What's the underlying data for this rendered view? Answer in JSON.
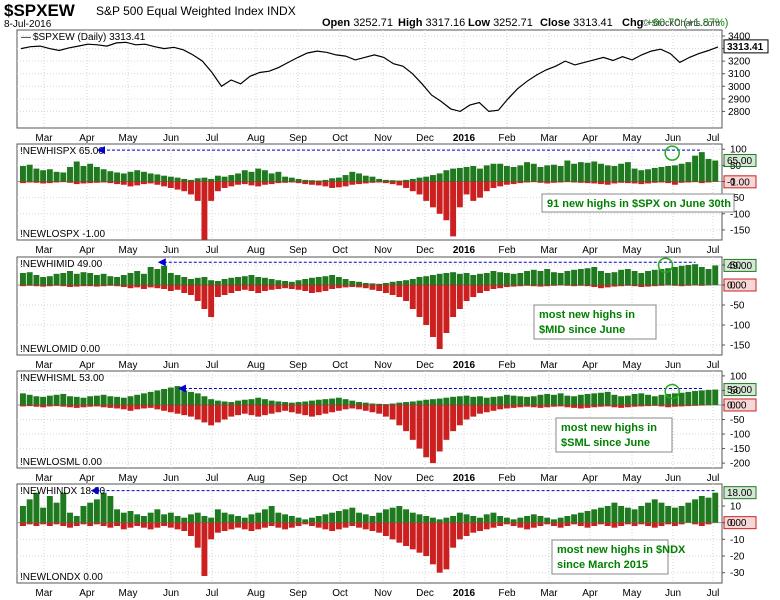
{
  "header": {
    "symbol": "$SPXEW",
    "index_name": "S&P 500 Equal Weighted Index",
    "exchange": "INDX",
    "date": "8-Jul-2016",
    "open_label": "Open",
    "open": "3252.71",
    "high_label": "High",
    "high": "3317.16",
    "low_label": "Low",
    "low": "3252.71",
    "close_label": "Close",
    "close": "3313.41",
    "chg_label": "Chg",
    "chg": "+60.70 (+1.87%)",
    "credit": "© StockCharts.com"
  },
  "months": [
    "Mar",
    "Apr",
    "May",
    "Jun",
    "Jul",
    "Aug",
    "Sep",
    "Oct",
    "Nov",
    "Dec",
    "2016",
    "Feb",
    "Mar",
    "Apr",
    "May",
    "Jun",
    "Jul"
  ],
  "colors": {
    "up_bar": "#1f7a1f",
    "down_bar": "#cc1f1f",
    "price_line": "#000000",
    "guide_line": "#0000cc",
    "annotation_text": "#008000",
    "circle": "#22aa22"
  },
  "chart_data": [
    {
      "type": "line",
      "title": "$SPXEW (Daily) 3313.41",
      "series": [
        {
          "name": "$SPXEW (Daily)",
          "values": [
            3300,
            3315,
            3320,
            3300,
            3285,
            3305,
            3320,
            3335,
            3330,
            3320,
            3345,
            3350,
            3330,
            3335,
            3315,
            3300,
            3310,
            3290,
            3250,
            3200,
            3110,
            3000,
            3050,
            3020,
            3080,
            3110,
            3120,
            3150,
            3190,
            3230,
            3265,
            3280,
            3270,
            3250,
            3240,
            3210,
            3230,
            3250,
            3230,
            3180,
            3160,
            3100,
            3020,
            2930,
            2880,
            2820,
            2800,
            2850,
            2870,
            2800,
            2810,
            2900,
            2980,
            3040,
            3090,
            3130,
            3160,
            3200,
            3170,
            3190,
            3210,
            3230,
            3205,
            3235,
            3210,
            3250,
            3280,
            3295,
            3260,
            3190,
            3230,
            3260,
            3285,
            3313.41
          ]
        }
      ],
      "ylim": [
        2700,
        3400
      ],
      "yticks": [
        2800,
        2900,
        3000,
        3100,
        3200,
        3300,
        3400
      ],
      "last_value": "3313.41"
    },
    {
      "type": "bar",
      "title": "!NEWHISPX 65.00",
      "lower_label": "!NEWLOSPX -1.00",
      "ylim": [
        -175,
        110
      ],
      "yticks": [
        -150,
        -100,
        -50,
        0,
        50,
        100
      ],
      "value_labels": [
        "65.00",
        "-1.00"
      ],
      "high_values": [
        48,
        52,
        40,
        35,
        38,
        30,
        28,
        45,
        62,
        48,
        55,
        45,
        38,
        32,
        28,
        25,
        30,
        35,
        30,
        25,
        22,
        18,
        15,
        12,
        8,
        5,
        10,
        12,
        8,
        18,
        15,
        20,
        25,
        35,
        30,
        40,
        35,
        25,
        30,
        15,
        12,
        8,
        5,
        4,
        3,
        5,
        10,
        12,
        20,
        30,
        25,
        18,
        15,
        8,
        5,
        4,
        3,
        5,
        8,
        12,
        15,
        20,
        25,
        35,
        40,
        42,
        45,
        48,
        40,
        50,
        55,
        55,
        48,
        45,
        50,
        60,
        55,
        45,
        50,
        52,
        48,
        65,
        55,
        60,
        58,
        62,
        55,
        50,
        48,
        55,
        60,
        40,
        35,
        38,
        42,
        45,
        48,
        50,
        55,
        60,
        80,
        91,
        70,
        65
      ],
      "low_values": [
        -5,
        -3,
        -4,
        -6,
        -5,
        -3,
        -2,
        -4,
        -8,
        -6,
        -5,
        -4,
        -3,
        -5,
        -8,
        -10,
        -15,
        -12,
        -8,
        -6,
        -10,
        -15,
        -20,
        -25,
        -30,
        -40,
        -60,
        -180,
        -60,
        -30,
        -20,
        -15,
        -10,
        -8,
        -12,
        -15,
        -10,
        -8,
        -5,
        -4,
        -3,
        -5,
        -8,
        -10,
        -12,
        -15,
        -20,
        -18,
        -15,
        -10,
        -8,
        -6,
        -4,
        -3,
        -5,
        -8,
        -12,
        -20,
        -30,
        -40,
        -60,
        -80,
        -100,
        -120,
        -170,
        -80,
        -40,
        -60,
        -50,
        -30,
        -20,
        -15,
        -10,
        -8,
        -5,
        -3,
        -2,
        -4,
        -6,
        -4,
        -3,
        -2,
        -3,
        -4,
        -5,
        -6,
        -8,
        -10,
        -6,
        -4,
        -5,
        -6,
        -8,
        -6,
        -4,
        -3,
        -5,
        -10,
        -4,
        -3,
        -2,
        -5,
        -3,
        -1
      ],
      "annotation": "91 new highs in $SPX on June 30th",
      "annotation_lines": [
        "91 new highs in $SPX on June 30th"
      ]
    },
    {
      "type": "bar",
      "title": "!NEWHIMID 49.00",
      "lower_label": "!NEWLOMID 0.00",
      "ylim": [
        -170,
        65
      ],
      "yticks": [
        -150,
        -100,
        -50,
        0,
        50
      ],
      "value_labels": [
        "49.00",
        "0.00"
      ],
      "high_values": [
        30,
        32,
        25,
        20,
        22,
        28,
        30,
        35,
        28,
        32,
        30,
        25,
        28,
        22,
        20,
        25,
        30,
        35,
        28,
        45,
        40,
        48,
        30,
        25,
        20,
        15,
        18,
        20,
        12,
        10,
        15,
        18,
        20,
        22,
        25,
        20,
        18,
        15,
        12,
        10,
        8,
        12,
        15,
        18,
        20,
        22,
        25,
        20,
        15,
        10,
        8,
        5,
        4,
        3,
        5,
        8,
        10,
        12,
        15,
        20,
        22,
        25,
        28,
        30,
        32,
        28,
        30,
        25,
        28,
        30,
        35,
        32,
        30,
        28,
        30,
        35,
        38,
        35,
        40,
        32,
        30,
        35,
        38,
        40,
        42,
        45,
        35,
        30,
        32,
        38,
        40,
        35,
        30,
        35,
        38,
        40,
        42,
        45,
        48,
        50,
        52,
        45,
        40,
        49
      ],
      "low_values": [
        -3,
        -2,
        -3,
        -4,
        -3,
        -2,
        -3,
        -5,
        -4,
        -3,
        -3,
        -4,
        -3,
        -2,
        -3,
        -5,
        -8,
        -6,
        -10,
        -6,
        -8,
        -10,
        -15,
        -12,
        -20,
        -25,
        -40,
        -60,
        -80,
        -30,
        -25,
        -20,
        -15,
        -12,
        -15,
        -20,
        -15,
        -12,
        -10,
        -8,
        -10,
        -12,
        -15,
        -20,
        -18,
        -15,
        -10,
        -8,
        -6,
        -5,
        -6,
        -8,
        -12,
        -15,
        -20,
        -25,
        -30,
        -40,
        -60,
        -80,
        -100,
        -130,
        -160,
        -120,
        -80,
        -60,
        -40,
        -30,
        -20,
        -15,
        -10,
        -8,
        -5,
        -4,
        -3,
        -2,
        -3,
        -4,
        -3,
        -2,
        -1,
        -2,
        -3,
        -2,
        -3,
        -5,
        -8,
        -6,
        -4,
        -3,
        -2,
        -3,
        -5,
        -4,
        -3,
        -2,
        -1,
        -2,
        -3,
        -2,
        -1,
        -2,
        -1,
        0
      ],
      "annotation": "most new highs in $MID since June",
      "annotation_lines": [
        "most new highs in",
        "$MID since June"
      ]
    },
    {
      "type": "bar",
      "title": "!NEWHISML 53.00",
      "lower_label": "!NEWLOSML 0.00",
      "ylim": [
        -210,
        110
      ],
      "yticks": [
        -200,
        -150,
        -100,
        -50,
        0,
        50,
        100
      ],
      "value_labels": [
        "53.00",
        "0.00"
      ],
      "high_values": [
        40,
        35,
        30,
        28,
        32,
        35,
        38,
        30,
        28,
        25,
        30,
        32,
        35,
        30,
        28,
        25,
        30,
        35,
        40,
        45,
        50,
        55,
        60,
        65,
        50,
        45,
        40,
        30,
        20,
        15,
        12,
        10,
        15,
        18,
        20,
        25,
        20,
        15,
        12,
        10,
        8,
        10,
        12,
        15,
        18,
        20,
        22,
        25,
        20,
        15,
        10,
        8,
        5,
        4,
        3,
        5,
        8,
        10,
        12,
        15,
        18,
        20,
        22,
        25,
        28,
        30,
        32,
        28,
        30,
        25,
        28,
        30,
        35,
        32,
        30,
        28,
        30,
        35,
        38,
        35,
        40,
        32,
        30,
        35,
        38,
        40,
        42,
        45,
        35,
        30,
        32,
        38,
        40,
        35,
        30,
        35,
        38,
        40,
        42,
        45,
        48,
        50,
        52,
        53
      ],
      "low_values": [
        -5,
        -4,
        -6,
        -8,
        -5,
        -4,
        -6,
        -8,
        -10,
        -8,
        -6,
        -5,
        -8,
        -10,
        -12,
        -15,
        -20,
        -15,
        -12,
        -10,
        -15,
        -20,
        -25,
        -30,
        -35,
        -40,
        -50,
        -60,
        -70,
        -60,
        -50,
        -40,
        -35,
        -30,
        -35,
        -40,
        -35,
        -30,
        -25,
        -20,
        -25,
        -30,
        -35,
        -40,
        -35,
        -30,
        -25,
        -20,
        -15,
        -12,
        -15,
        -20,
        -25,
        -30,
        -40,
        -50,
        -70,
        -90,
        -120,
        -150,
        -180,
        -200,
        -160,
        -120,
        -90,
        -70,
        -50,
        -40,
        -30,
        -25,
        -20,
        -15,
        -12,
        -10,
        -8,
        -6,
        -8,
        -10,
        -8,
        -6,
        -5,
        -8,
        -10,
        -12,
        -10,
        -8,
        -6,
        -5,
        -8,
        -10,
        -8,
        -6,
        -5,
        -4,
        -3,
        -5,
        -8,
        -6,
        -5,
        -4,
        -3,
        -2,
        -1,
        0
      ],
      "annotation": "most new highs in $SML since June",
      "annotation_lines": [
        "most new highs in",
        "$SML since June"
      ]
    },
    {
      "type": "bar",
      "title": "!NEWHINDX 18.00",
      "lower_label": "!NEWLONDX 0.00",
      "ylim": [
        -35,
        22
      ],
      "yticks": [
        -30,
        -20,
        -10,
        0,
        10
      ],
      "value_labels": [
        "18.00",
        "0.00"
      ],
      "high_values": [
        10,
        14,
        18,
        9,
        16,
        12,
        18,
        6,
        4,
        10,
        12,
        14,
        18,
        16,
        8,
        6,
        7,
        5,
        4,
        6,
        8,
        5,
        6,
        4,
        3,
        5,
        6,
        4,
        3,
        8,
        6,
        5,
        4,
        3,
        5,
        6,
        8,
        10,
        6,
        5,
        4,
        3,
        2,
        3,
        4,
        5,
        6,
        7,
        8,
        9,
        6,
        5,
        4,
        6,
        8,
        9,
        10,
        8,
        6,
        5,
        4,
        3,
        2,
        3,
        4,
        6,
        5,
        4,
        3,
        5,
        6,
        4,
        3,
        2,
        3,
        4,
        5,
        4,
        3,
        2,
        3,
        4,
        5,
        6,
        7,
        8,
        9,
        10,
        12,
        10,
        9,
        8,
        10,
        12,
        14,
        12,
        10,
        9,
        10,
        12,
        14,
        16,
        15,
        18
      ],
      "low_values": [
        -2,
        -1,
        -2,
        -1,
        -2,
        -1,
        -2,
        -3,
        -2,
        -1,
        -2,
        -1,
        -2,
        -3,
        -2,
        -4,
        -3,
        -2,
        -3,
        -4,
        -3,
        -2,
        -3,
        -4,
        -5,
        -8,
        -15,
        -32,
        -10,
        -6,
        -5,
        -4,
        -3,
        -4,
        -5,
        -4,
        -3,
        -2,
        -3,
        -4,
        -3,
        -2,
        -1,
        -2,
        -3,
        -4,
        -5,
        -4,
        -3,
        -2,
        -3,
        -4,
        -5,
        -6,
        -8,
        -10,
        -12,
        -14,
        -16,
        -18,
        -20,
        -25,
        -30,
        -28,
        -15,
        -10,
        -8,
        -6,
        -5,
        -4,
        -3,
        -2,
        -1,
        -2,
        -3,
        -4,
        -3,
        -2,
        -1,
        -2,
        -3,
        -2,
        -1,
        -2,
        -3,
        -2,
        -1,
        -2,
        -3,
        -2,
        -1,
        -2,
        -1,
        -2,
        -3,
        -2,
        -1,
        -2,
        -1,
        0,
        -1,
        -2,
        -1,
        0
      ],
      "annotation": "most new highs in $NDX since March 2015",
      "annotation_lines": [
        "most new highs in $NDX",
        "since March 2015"
      ]
    }
  ]
}
